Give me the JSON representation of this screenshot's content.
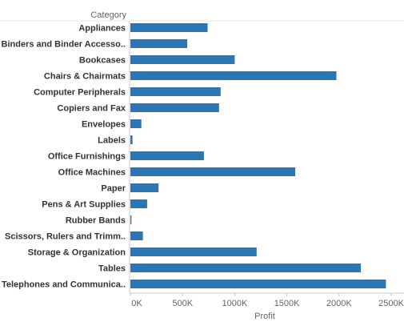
{
  "chart_data": {
    "type": "bar",
    "orientation": "horizontal",
    "header": "Category",
    "xlabel": "Profit",
    "ylabel": "",
    "title": "",
    "categories": [
      "Appliances",
      "Binders and Binder Accesso..",
      "Bookcases",
      "Chairs & Chairmats",
      "Computer Peripherals",
      "Copiers and Fax",
      "Envelopes",
      "Labels",
      "Office Furnishings",
      "Office Machines",
      "Paper",
      "Pens & Art Supplies",
      "Rubber Bands",
      "Scissors, Rulers and Trimm..",
      "Storage & Organization",
      "Tables",
      "Telephones and Communica.."
    ],
    "values": [
      740000,
      545000,
      1000000,
      1975000,
      865000,
      850000,
      105000,
      20000,
      705000,
      1580000,
      270000,
      160000,
      10000,
      120000,
      1210000,
      2210000,
      2450000
    ],
    "xlim": [
      0,
      2600000
    ],
    "ticks": [
      {
        "value": 0,
        "label": "0K"
      },
      {
        "value": 500000,
        "label": "500K"
      },
      {
        "value": 1000000,
        "label": "1000K"
      },
      {
        "value": 1500000,
        "label": "1500K"
      },
      {
        "value": 2000000,
        "label": "2000K"
      },
      {
        "value": 2500000,
        "label": "2500K"
      }
    ],
    "grid": false,
    "colors": {
      "bar": "#2b76b4",
      "axis": "#c8c8c8",
      "label": "#333333",
      "muted": "#666666"
    }
  }
}
